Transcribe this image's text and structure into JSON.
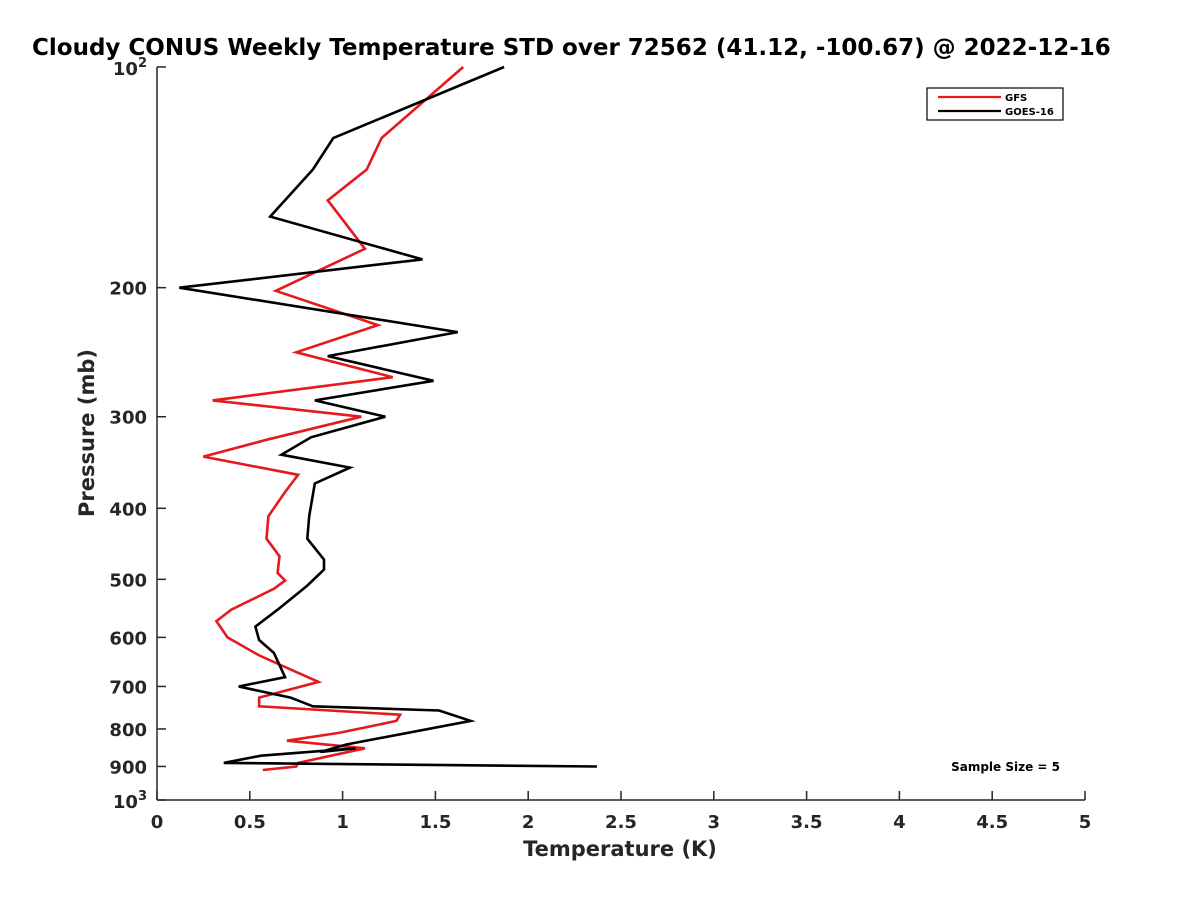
{
  "chart_data": {
    "type": "line",
    "title": "Cloudy CONUS Weekly Temperature STD over 72562 (41.12, -100.67) @ 2022-12-16",
    "xlabel": "Temperature (K)",
    "ylabel": "Pressure (mb)",
    "xlim": [
      0,
      5
    ],
    "ylim": [
      1000,
      100
    ],
    "y_scale": "log",
    "y_reversed": true,
    "grid": false,
    "legend_placement": "top-right",
    "x_ticks": [
      "0",
      "0.5",
      "1",
      "1.5",
      "2",
      "2.5",
      "3",
      "3.5",
      "4",
      "4.5",
      "5"
    ],
    "x_tick_values": [
      0,
      0.5,
      1,
      1.5,
      2,
      2.5,
      3,
      3.5,
      4,
      4.5,
      5
    ],
    "y_ticks": [
      {
        "value": 100,
        "label": "10",
        "sup": "2"
      },
      {
        "value": 200,
        "label": "200"
      },
      {
        "value": 300,
        "label": "300"
      },
      {
        "value": 400,
        "label": "400"
      },
      {
        "value": 500,
        "label": "500"
      },
      {
        "value": 600,
        "label": "600"
      },
      {
        "value": 700,
        "label": "700"
      },
      {
        "value": 800,
        "label": "800"
      },
      {
        "value": 900,
        "label": "900"
      },
      {
        "value": 1000,
        "label": "10",
        "sup": "3"
      }
    ],
    "annotation": "Sample Size = 5",
    "series": [
      {
        "name": "GFS",
        "color": "#e41a1c",
        "points": [
          [
            1.65,
            100
          ],
          [
            1.21,
            125
          ],
          [
            1.13,
            138
          ],
          [
            0.92,
            152
          ],
          [
            1.12,
            177
          ],
          [
            0.64,
            202
          ],
          [
            1.19,
            225
          ],
          [
            0.75,
            245
          ],
          [
            1.27,
            265
          ],
          [
            0.3,
            285
          ],
          [
            1.1,
            300
          ],
          [
            0.6,
            322
          ],
          [
            0.25,
            340
          ],
          [
            0.76,
            360
          ],
          [
            0.69,
            380
          ],
          [
            0.6,
            410
          ],
          [
            0.59,
            440
          ],
          [
            0.66,
            465
          ],
          [
            0.65,
            490
          ],
          [
            0.69,
            502
          ],
          [
            0.63,
            515
          ],
          [
            0.4,
            550
          ],
          [
            0.32,
            570
          ],
          [
            0.38,
            600
          ],
          [
            0.55,
            635
          ],
          [
            0.87,
            690
          ],
          [
            0.55,
            725
          ],
          [
            0.55,
            745
          ],
          [
            1.31,
            765
          ],
          [
            1.29,
            780
          ],
          [
            0.98,
            810
          ],
          [
            0.7,
            830
          ],
          [
            1.12,
            850
          ],
          [
            0.76,
            890
          ],
          [
            0.75,
            900
          ],
          [
            0.57,
            910
          ]
        ]
      },
      {
        "name": "GOES-16",
        "color": "#000000",
        "points": [
          [
            1.87,
            100
          ],
          [
            0.95,
            125
          ],
          [
            0.84,
            138
          ],
          [
            0.61,
            160
          ],
          [
            1.43,
            183
          ],
          [
            0.12,
            200
          ],
          [
            1.62,
            230
          ],
          [
            0.92,
            248
          ],
          [
            1.49,
            268
          ],
          [
            0.85,
            285
          ],
          [
            1.23,
            300
          ],
          [
            0.83,
            320
          ],
          [
            0.67,
            338
          ],
          [
            1.04,
            352
          ],
          [
            0.85,
            370
          ],
          [
            0.82,
            410
          ],
          [
            0.81,
            440
          ],
          [
            0.9,
            470
          ],
          [
            0.9,
            485
          ],
          [
            0.81,
            510
          ],
          [
            0.65,
            550
          ],
          [
            0.53,
            580
          ],
          [
            0.55,
            605
          ],
          [
            0.63,
            630
          ],
          [
            0.69,
            680
          ],
          [
            0.44,
            700
          ],
          [
            0.72,
            725
          ],
          [
            0.84,
            745
          ],
          [
            1.52,
            755
          ],
          [
            1.69,
            780
          ],
          [
            1.02,
            840
          ],
          [
            0.88,
            860
          ],
          [
            1.07,
            850
          ],
          [
            0.56,
            870
          ],
          [
            0.36,
            890
          ],
          [
            2.37,
            900
          ]
        ]
      }
    ]
  }
}
